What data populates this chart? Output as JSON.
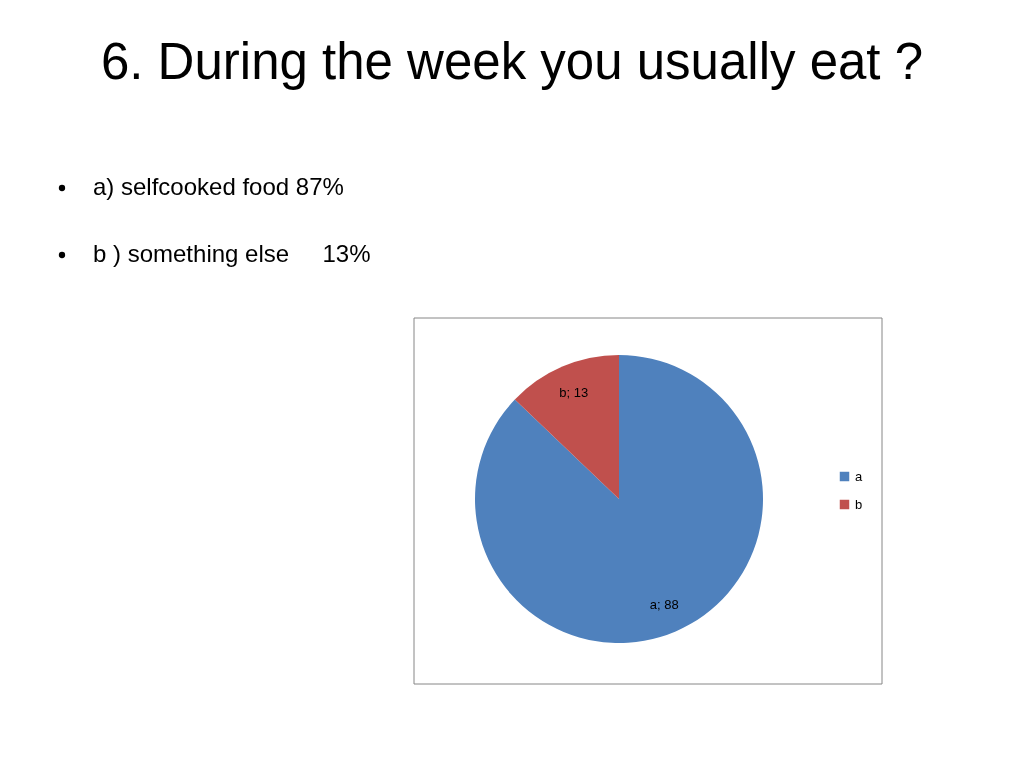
{
  "chart_data": {
    "type": "pie",
    "title": "6. During the week you usually eat ?",
    "annotations": [
      "a) selfcooked food 87%",
      "b ) something else     13%"
    ],
    "categories": [
      "a",
      "b"
    ],
    "values": [
      88,
      13
    ],
    "colors": [
      "#4f81bd",
      "#c0504d"
    ],
    "value_labels": [
      "a; 88",
      "b; 13"
    ],
    "legend": "right"
  }
}
